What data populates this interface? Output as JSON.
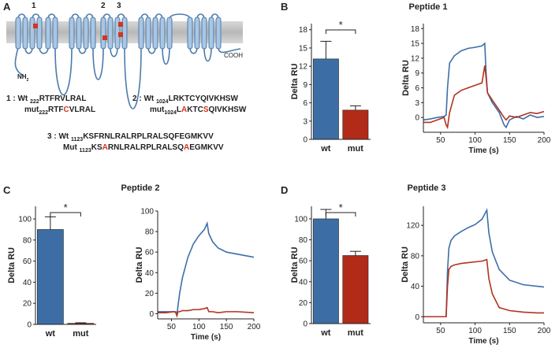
{
  "panels": [
    "A",
    "B",
    "C",
    "D"
  ],
  "diagram": {
    "site_labels": [
      "1",
      "2",
      "3"
    ],
    "n_terminus": [
      {
        "text": "NH"
      },
      {
        "text": "2",
        "sub": true
      }
    ],
    "c_terminus": "COOH",
    "sequences": [
      [
        {
          "text": "1 : Wt "
        },
        {
          "text": "222",
          "sub": true
        },
        {
          "text": "RTFRVLRAL"
        }
      ],
      [
        {
          "text": "mut"
        },
        {
          "text": "222",
          "sub": true
        },
        {
          "text": "RTF"
        },
        {
          "text": "C",
          "color": "#d2361c"
        },
        {
          "text": "VLRAL"
        }
      ],
      [
        {
          "text": "2 : Wt "
        },
        {
          "text": "1024",
          "sub": true
        },
        {
          "text": "LRKTCYQIVKHSW"
        }
      ],
      [
        {
          "text": "mut"
        },
        {
          "text": "1024",
          "sub": true
        },
        {
          "text": "L"
        },
        {
          "text": "A",
          "color": "#d2361c"
        },
        {
          "text": "KTC"
        },
        {
          "text": "S",
          "color": "#d2361c"
        },
        {
          "text": "QIVKHSW"
        }
      ],
      [
        {
          "text": "3 : Wt "
        },
        {
          "text": "1123",
          "sub": true
        },
        {
          "text": "KSFRNLRALRPLRALSQFEGMKVV"
        }
      ],
      [
        {
          "text": "Mut "
        },
        {
          "text": "1123",
          "sub": true
        },
        {
          "text": "KS"
        },
        {
          "text": "A",
          "color": "#d2361c"
        },
        {
          "text": "RNLRALRPLRALSQ"
        },
        {
          "text": "A",
          "color": "#d2361c"
        },
        {
          "text": "EGMKVV"
        }
      ]
    ]
  },
  "chart_data": [
    {
      "type": "bar",
      "title": "Peptide 1",
      "ylabel": "Delta RU",
      "categories": [
        "wt",
        "mut"
      ],
      "values": [
        13.2,
        4.8
      ],
      "errors": [
        2.9,
        0.7
      ],
      "colors": [
        "#3c6ea5",
        "#b22a18"
      ],
      "annotation": "*",
      "ylim": [
        0,
        19
      ],
      "yticks": [
        0,
        3,
        6,
        9,
        12,
        15,
        18
      ]
    },
    {
      "type": "line",
      "ylabel": "Delta RU",
      "xlabel": "Time (s)",
      "xlim": [
        25,
        200
      ],
      "xticks": [
        50,
        100,
        150,
        200
      ],
      "ylim": [
        -3,
        19
      ],
      "yticks": [
        0,
        3,
        6,
        9,
        12,
        15,
        18
      ],
      "x": [
        25,
        35,
        45,
        55,
        58,
        60,
        63,
        70,
        80,
        90,
        100,
        110,
        114,
        116,
        118,
        125,
        135,
        142,
        145,
        150,
        160,
        170,
        180,
        190,
        200
      ],
      "series": [
        {
          "color": "#3d6fa8",
          "values": [
            -0.5,
            -0.3,
            0,
            0.2,
            0.5,
            6,
            11,
            12.5,
            13.5,
            14,
            14.2,
            14.5,
            15,
            9,
            5,
            3,
            1,
            -1.5,
            -2,
            -0.5,
            0.2,
            -0.3,
            0.5,
            0,
            0.2
          ]
        },
        {
          "color": "#b3321f",
          "values": [
            -1,
            -1,
            -0.5,
            0,
            -1.5,
            -2,
            1,
            4.5,
            5.5,
            6,
            6.5,
            7,
            10.5,
            8,
            5,
            3.5,
            1.5,
            0,
            -0.5,
            0.3,
            0,
            0.5,
            1,
            0.8,
            1.2
          ]
        }
      ]
    },
    {
      "type": "bar",
      "title": "Peptide 2",
      "ylabel": "Delta RU",
      "categories": [
        "wt",
        "mut"
      ],
      "values": [
        90,
        1
      ],
      "errors": [
        12,
        0.5
      ],
      "colors": [
        "#3c6ea5",
        "#b22a18"
      ],
      "annotation": "*",
      "ylim": [
        0,
        112
      ],
      "yticks": [
        0,
        20,
        40,
        60,
        80,
        100
      ]
    },
    {
      "type": "line",
      "ylabel": "Delta RU",
      "xlabel": "Time (s)",
      "xlim": [
        25,
        200
      ],
      "xticks": [
        50,
        100,
        150,
        200
      ],
      "ylim": [
        -5,
        100
      ],
      "yticks": [
        0,
        20,
        40,
        60,
        80,
        100
      ],
      "x": [
        25,
        40,
        55,
        58,
        60,
        62,
        65,
        70,
        80,
        90,
        100,
        110,
        115,
        118,
        125,
        135,
        150,
        170,
        200
      ],
      "series": [
        {
          "color": "#3d6fa8",
          "values": [
            2,
            2,
            2,
            2,
            -2,
            8,
            20,
            35,
            55,
            68,
            76,
            82,
            88,
            78,
            70,
            64,
            60,
            58,
            55
          ]
        },
        {
          "color": "#b3321f",
          "values": [
            1,
            1,
            2,
            1,
            -2,
            2,
            2,
            3,
            3,
            4,
            4,
            5,
            6,
            2,
            2,
            1,
            2,
            2,
            1
          ]
        }
      ]
    },
    {
      "type": "bar",
      "title": "Peptide 3",
      "ylabel": "Delta RU",
      "categories": [
        "wt",
        "mut"
      ],
      "values": [
        100,
        65
      ],
      "errors": [
        9,
        4
      ],
      "colors": [
        "#3c6ea5",
        "#b22a18"
      ],
      "annotation": "*",
      "ylim": [
        0,
        112
      ],
      "yticks": [
        0,
        20,
        40,
        60,
        80,
        100
      ]
    },
    {
      "type": "line",
      "ylabel": "Delta RU",
      "xlabel": "Time (s)",
      "xlim": [
        25,
        200
      ],
      "xticks": [
        50,
        100,
        150,
        200
      ],
      "ylim": [
        -8,
        145
      ],
      "yticks": [
        0,
        40,
        80,
        120
      ],
      "x": [
        25,
        40,
        55,
        58,
        60,
        62,
        65,
        70,
        80,
        90,
        100,
        110,
        117,
        120,
        125,
        135,
        150,
        170,
        190,
        200
      ],
      "series": [
        {
          "color": "#3d6fa8",
          "values": [
            0,
            0,
            0,
            0,
            60,
            90,
            100,
            106,
            112,
            117,
            121,
            128,
            140,
            110,
            85,
            62,
            48,
            42,
            40,
            39
          ]
        },
        {
          "color": "#b3321f",
          "values": [
            0,
            0,
            0,
            0,
            40,
            62,
            66,
            68,
            70,
            71,
            72,
            73,
            75,
            50,
            30,
            12,
            8,
            6,
            5,
            5
          ]
        }
      ]
    }
  ]
}
